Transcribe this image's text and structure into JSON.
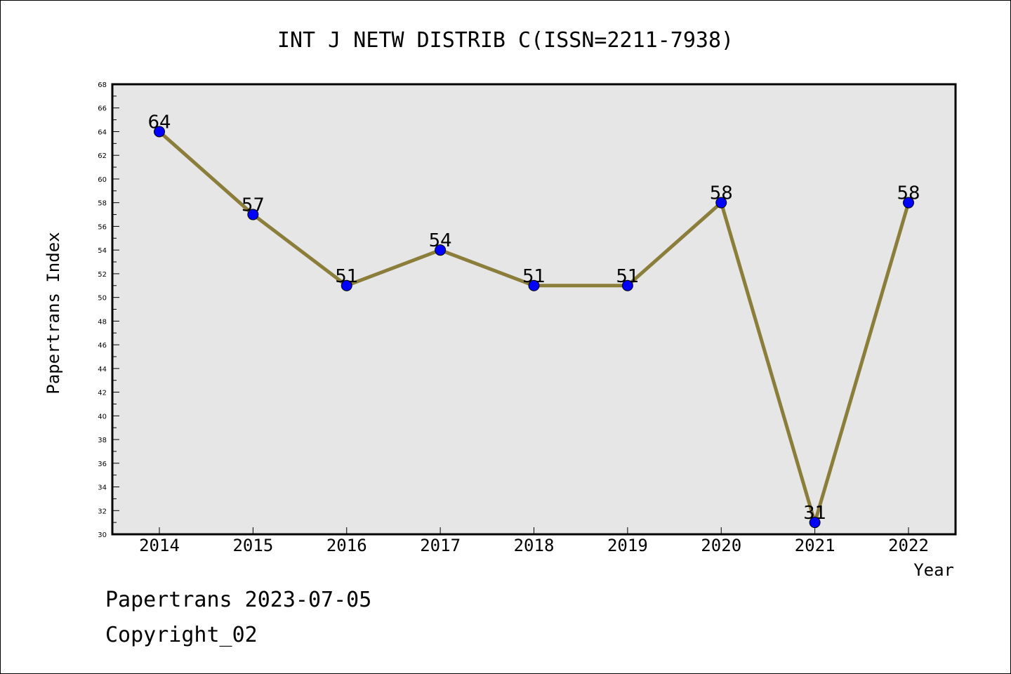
{
  "chart_data": {
    "type": "line",
    "title": "INT J NETW DISTRIB C(ISSN=2211-7938)",
    "xlabel": "Year",
    "ylabel": "Papertrans Index",
    "categories": [
      "2014",
      "2015",
      "2016",
      "2017",
      "2018",
      "2019",
      "2020",
      "2021",
      "2022"
    ],
    "series": [
      {
        "values": [
          64,
          57,
          51,
          54,
          51,
          51,
          58,
          31,
          58
        ]
      }
    ],
    "ylim": [
      30,
      68
    ],
    "y_tick_step": 2,
    "grid": false,
    "data_labels": true,
    "colors": {
      "plot_background": "#e6e6e6",
      "line": "#8b7d3a",
      "marker": "#0000ff"
    }
  },
  "footer": {
    "line1": "Papertrans 2023-07-05",
    "line2": "Copyright_02"
  }
}
